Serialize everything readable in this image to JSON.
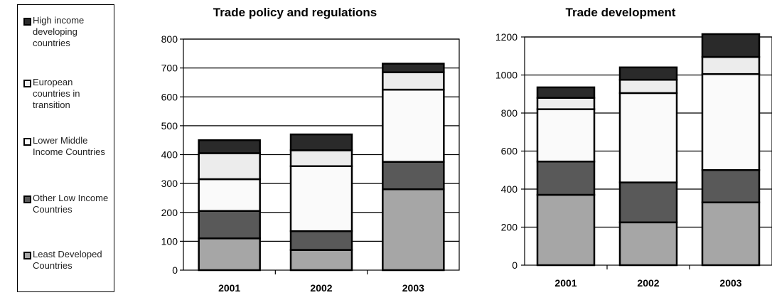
{
  "legend": {
    "items": [
      {
        "label": "High income developing countries",
        "color": "#2a2a2a"
      },
      {
        "label": "European countries in transition",
        "color": "#ececec"
      },
      {
        "label": "Lower Middle Income Countries",
        "color": "#fafafa"
      },
      {
        "label": "Other Low Income Countries",
        "color": "#595959"
      },
      {
        "label": "Least Developed Countries",
        "color": "#a6a6a6"
      }
    ]
  },
  "chart_data": [
    {
      "type": "stacked-bar",
      "title": "Trade policy and regulations",
      "categories": [
        "2001",
        "2002",
        "2003"
      ],
      "ylim": [
        0,
        800
      ],
      "yticks": [
        0,
        100,
        200,
        300,
        400,
        500,
        600,
        700,
        800
      ],
      "series": [
        {
          "name": "Least Developed Countries",
          "color": "#a6a6a6",
          "values": [
            110,
            70,
            280
          ]
        },
        {
          "name": "Other Low Income Countries",
          "color": "#595959",
          "values": [
            95,
            65,
            95
          ]
        },
        {
          "name": "Lower Middle Income Countries",
          "color": "#fafafa",
          "values": [
            110,
            225,
            250
          ]
        },
        {
          "name": "European countries in transition",
          "color": "#ececec",
          "values": [
            90,
            55,
            60
          ]
        },
        {
          "name": "High income developing countries",
          "color": "#2a2a2a",
          "values": [
            45,
            55,
            30
          ]
        }
      ]
    },
    {
      "type": "stacked-bar",
      "title": "Trade development",
      "categories": [
        "2001",
        "2002",
        "2003"
      ],
      "ylim": [
        0,
        1200
      ],
      "yticks": [
        0,
        200,
        400,
        600,
        800,
        1000,
        1200
      ],
      "series": [
        {
          "name": "Least Developed Countries",
          "color": "#a6a6a6",
          "values": [
            370,
            225,
            330
          ]
        },
        {
          "name": "Other Low Income Countries",
          "color": "#595959",
          "values": [
            175,
            210,
            170
          ]
        },
        {
          "name": "Lower Middle Income Countries",
          "color": "#fafafa",
          "values": [
            275,
            470,
            505
          ]
        },
        {
          "name": "European countries in transition",
          "color": "#ececec",
          "values": [
            60,
            70,
            90
          ]
        },
        {
          "name": "High income developing countries",
          "color": "#2a2a2a",
          "values": [
            55,
            65,
            120
          ]
        }
      ]
    }
  ]
}
